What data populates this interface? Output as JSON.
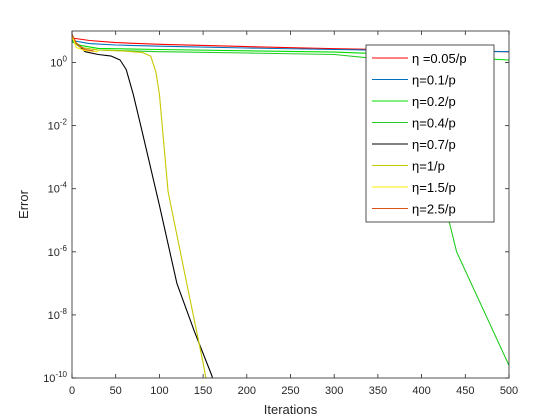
{
  "chart_data": {
    "type": "line",
    "title": "",
    "xlabel": "Iterations",
    "ylabel": "Error",
    "xlim": [
      0,
      500
    ],
    "ylim_log10": [
      -10,
      1
    ],
    "yscale": "log",
    "grid": false,
    "legend_position": "top-right",
    "xticks": [
      0,
      50,
      100,
      150,
      200,
      250,
      300,
      350,
      400,
      450,
      500
    ],
    "yticks": [
      {
        "base": "10",
        "exp": "0",
        "log10": 0
      },
      {
        "base": "10",
        "exp": "-2",
        "log10": -2
      },
      {
        "base": "10",
        "exp": "-4",
        "log10": -4
      },
      {
        "base": "10",
        "exp": "-6",
        "log10": -6
      },
      {
        "base": "10",
        "exp": "-8",
        "log10": -8
      },
      {
        "base": "10",
        "exp": "-10",
        "log10": -10
      }
    ],
    "series": [
      {
        "name": "η =0.05/p",
        "color": "#ff0000",
        "x": [
          0,
          20,
          50,
          100,
          200,
          300,
          400,
          500
        ],
        "y": [
          6,
          5,
          4.3,
          3.8,
          3.2,
          2.75,
          2.45,
          2.2
        ]
      },
      {
        "name": "η=0.1/p",
        "color": "#0072bd",
        "x": [
          0,
          20,
          50,
          100,
          200,
          300,
          400,
          500
        ],
        "y": [
          5,
          4,
          3.6,
          3.3,
          2.9,
          2.6,
          2.35,
          2.2
        ]
      },
      {
        "name": "η=0.2/p",
        "color": "#00dd00",
        "x": [
          0,
          10,
          30,
          100,
          200,
          300,
          400,
          500
        ],
        "y": [
          4.5,
          3.5,
          2.8,
          2.6,
          2.35,
          2.15,
          1.7,
          1.2
        ]
      },
      {
        "name": "η=0.4/p",
        "color": "#22cc22",
        "x": [
          0,
          10,
          30,
          100,
          200,
          300,
          340,
          355,
          370,
          390,
          410,
          425,
          440,
          500
        ],
        "y": [
          5,
          3,
          2.5,
          2.2,
          2.0,
          1.8,
          1.4,
          0.8,
          0.3,
          0.05,
          0.003,
          5e-05,
          1e-06,
          2.5e-10
        ]
      },
      {
        "name": "η=0.7/p",
        "color": "#000000",
        "x": [
          0,
          5,
          15,
          30,
          45,
          55,
          62,
          70,
          80,
          100,
          120,
          140,
          160,
          170
        ],
        "y": [
          7,
          4,
          2.2,
          1.8,
          1.6,
          1.2,
          0.6,
          0.1,
          0.007,
          3e-05,
          1e-07,
          3e-09,
          1.2e-10,
          1e-11
        ]
      },
      {
        "name": "η=1/p",
        "color": "#c8c800",
        "x": [
          0,
          10,
          30,
          60,
          80,
          90,
          96,
          100,
          110,
          130,
          150,
          160
        ],
        "y": [
          6,
          3,
          2.5,
          2.3,
          2.1,
          1.6,
          0.5,
          0.1,
          8e-05,
          1.5e-07,
          3e-10,
          1e-11
        ]
      },
      {
        "name": "η=1.5/p",
        "color": "#ffee00",
        "x": [
          0,
          5,
          15,
          30
        ],
        "y": [
          7,
          3,
          2.4,
          2.2
        ]
      },
      {
        "name": "η=2.5/p",
        "color": "#d95319",
        "x": [
          0,
          5,
          15,
          25
        ],
        "y": [
          8,
          4,
          2.6,
          2.3
        ]
      }
    ]
  }
}
